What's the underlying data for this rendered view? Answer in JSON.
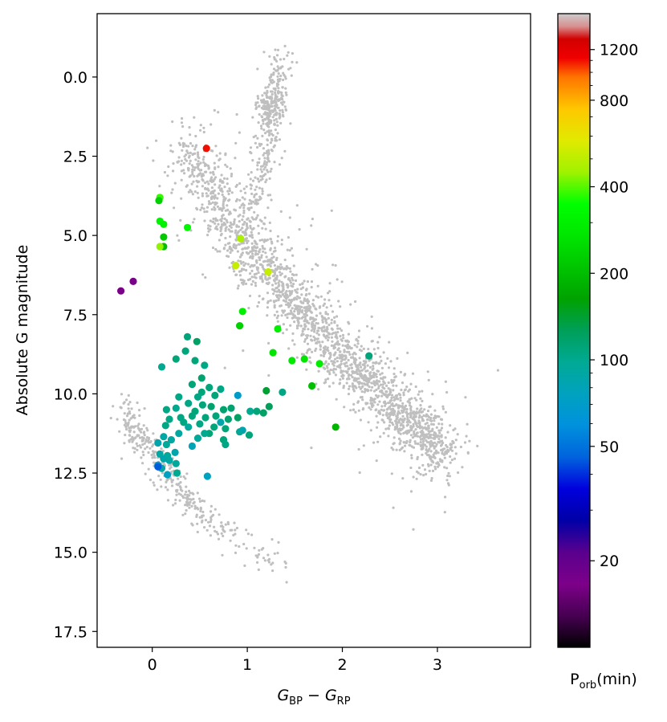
{
  "chart_data": {
    "type": "scatter",
    "xlabel": "G_BP − G_RP",
    "ylabel": "Absolute G magnitude",
    "xlim": [
      -0.58,
      3.98
    ],
    "ylim": [
      18.0,
      -2.0
    ],
    "y_inverted": true,
    "xticks": [
      0,
      1,
      2,
      3
    ],
    "yticks": [
      0.0,
      2.5,
      5.0,
      7.5,
      10.0,
      12.5,
      15.0,
      17.5
    ],
    "grid": false,
    "background_series": {
      "name": "",
      "color": "#bfbfbf",
      "description_points": "dense field-star population: main sequence, red giant branch and white dwarf cooling sequence",
      "main_sequence": [
        [
          0.3,
          2.3
        ],
        [
          0.5,
          2.8
        ],
        [
          0.7,
          3.8
        ],
        [
          0.9,
          4.9
        ],
        [
          1.1,
          5.7
        ],
        [
          1.3,
          6.4
        ],
        [
          1.5,
          7.1
        ],
        [
          1.7,
          7.8
        ],
        [
          1.9,
          8.5
        ],
        [
          2.1,
          9.1
        ],
        [
          2.3,
          9.7
        ],
        [
          2.5,
          10.3
        ],
        [
          2.7,
          10.9
        ],
        [
          2.9,
          11.4
        ],
        [
          3.1,
          11.9
        ]
      ],
      "giant_branch": [
        [
          1.0,
          4.5
        ],
        [
          1.1,
          3.6
        ],
        [
          1.15,
          2.8
        ],
        [
          1.2,
          2.0
        ],
        [
          1.25,
          1.2
        ],
        [
          1.3,
          0.4
        ],
        [
          1.35,
          -0.5
        ],
        [
          1.2,
          0.9
        ],
        [
          1.3,
          1.2
        ]
      ],
      "white_dwarfs": [
        [
          -0.3,
          10.5
        ],
        [
          -0.2,
          11.0
        ],
        [
          -0.1,
          11.5
        ],
        [
          0.0,
          12.0
        ],
        [
          0.1,
          12.3
        ],
        [
          0.2,
          12.7
        ],
        [
          0.3,
          13.0
        ],
        [
          0.4,
          13.4
        ],
        [
          0.5,
          13.7
        ],
        [
          0.6,
          14.0
        ],
        [
          0.8,
          14.5
        ],
        [
          1.0,
          14.9
        ],
        [
          1.2,
          15.2
        ],
        [
          1.4,
          15.5
        ]
      ]
    },
    "series": [
      {
        "name": "",
        "columns": [
          "bp_rp",
          "abs_g",
          "p_orb_min"
        ],
        "points": [
          [
            0.57,
            2.25,
            1100
          ],
          [
            0.08,
            3.8,
            380
          ],
          [
            0.07,
            3.9,
            230
          ],
          [
            0.08,
            4.55,
            320
          ],
          [
            0.12,
            4.65,
            300
          ],
          [
            0.12,
            5.05,
            220
          ],
          [
            0.12,
            5.35,
            200
          ],
          [
            0.08,
            5.35,
            440
          ],
          [
            0.37,
            4.75,
            330
          ],
          [
            0.93,
            5.1,
            470
          ],
          [
            0.88,
            5.95,
            520
          ],
          [
            1.22,
            6.15,
            520
          ],
          [
            -0.33,
            6.75,
            17
          ],
          [
            -0.2,
            6.45,
            17
          ],
          [
            0.95,
            7.4,
            300
          ],
          [
            0.92,
            7.85,
            230
          ],
          [
            1.32,
            7.95,
            300
          ],
          [
            1.27,
            8.7,
            270
          ],
          [
            1.47,
            8.95,
            280
          ],
          [
            1.6,
            8.9,
            270
          ],
          [
            1.76,
            9.05,
            290
          ],
          [
            1.68,
            9.75,
            200
          ],
          [
            1.93,
            11.05,
            190
          ],
          [
            2.28,
            8.8,
            110
          ],
          [
            0.37,
            8.2,
            110
          ],
          [
            0.47,
            8.35,
            120
          ],
          [
            0.35,
            8.65,
            110
          ],
          [
            0.25,
            8.9,
            110
          ],
          [
            0.45,
            8.95,
            110
          ],
          [
            0.1,
            9.15,
            100
          ],
          [
            0.55,
            9.1,
            105
          ],
          [
            0.52,
            9.5,
            115
          ],
          [
            0.42,
            9.7,
            110
          ],
          [
            0.6,
            9.8,
            110
          ],
          [
            0.52,
            9.95,
            110
          ],
          [
            0.72,
            9.85,
            105
          ],
          [
            0.48,
            10.1,
            105
          ],
          [
            0.66,
            10.05,
            110
          ],
          [
            0.28,
            10.1,
            105
          ],
          [
            0.38,
            10.3,
            105
          ],
          [
            0.53,
            10.35,
            110
          ],
          [
            0.25,
            10.45,
            100
          ],
          [
            0.15,
            10.5,
            105
          ],
          [
            0.62,
            10.4,
            115
          ],
          [
            0.75,
            10.5,
            115
          ],
          [
            0.83,
            10.45,
            115
          ],
          [
            0.45,
            10.55,
            110
          ],
          [
            0.42,
            10.7,
            110
          ],
          [
            0.56,
            10.75,
            110
          ],
          [
            0.3,
            10.75,
            105
          ],
          [
            0.67,
            10.7,
            110
          ],
          [
            0.8,
            10.8,
            115
          ],
          [
            0.9,
            10.75,
            120
          ],
          [
            0.18,
            10.8,
            105
          ],
          [
            0.33,
            10.9,
            105
          ],
          [
            0.5,
            10.95,
            105
          ],
          [
            0.65,
            11.05,
            110
          ],
          [
            0.14,
            11.0,
            105
          ],
          [
            0.77,
            11.1,
            110
          ],
          [
            0.38,
            11.05,
            95
          ],
          [
            0.6,
            11.25,
            110
          ],
          [
            0.55,
            11.25,
            100
          ],
          [
            0.28,
            11.25,
            90
          ],
          [
            0.92,
            11.2,
            100
          ],
          [
            0.12,
            11.35,
            90
          ],
          [
            0.48,
            11.4,
            95
          ],
          [
            0.75,
            11.45,
            110
          ],
          [
            0.2,
            11.45,
            90
          ],
          [
            0.06,
            11.55,
            85
          ],
          [
            0.15,
            11.6,
            95
          ],
          [
            0.77,
            11.6,
            105
          ],
          [
            0.42,
            11.65,
            80
          ],
          [
            0.08,
            11.9,
            90
          ],
          [
            0.16,
            11.95,
            95
          ],
          [
            0.24,
            11.85,
            85
          ],
          [
            0.12,
            12.05,
            85
          ],
          [
            0.18,
            12.1,
            90
          ],
          [
            0.25,
            12.2,
            95
          ],
          [
            0.06,
            12.25,
            70
          ],
          [
            0.1,
            12.35,
            90
          ],
          [
            0.26,
            12.5,
            100
          ],
          [
            0.16,
            12.55,
            75
          ],
          [
            0.06,
            12.3,
            45
          ],
          [
            0.58,
            12.6,
            75
          ],
          [
            0.9,
            10.05,
            70
          ],
          [
            1.03,
            10.55,
            100
          ],
          [
            1.1,
            10.55,
            110
          ],
          [
            1.17,
            10.6,
            120
          ],
          [
            1.02,
            11.3,
            110
          ],
          [
            1.2,
            9.9,
            140
          ],
          [
            1.37,
            9.95,
            105
          ],
          [
            1.23,
            10.4,
            125
          ],
          [
            0.95,
            11.15,
            85
          ],
          [
            0.72,
            10.9,
            85
          ]
        ]
      }
    ],
    "colorbar": {
      "label_main": "P",
      "label_sub": "orb",
      "label_unit": "(min)",
      "scale": "log",
      "range": [
        10,
        1600
      ],
      "ticks": [
        20,
        50,
        100,
        200,
        400,
        800,
        1200
      ],
      "tick_labels": [
        "20",
        "50",
        "100",
        "200",
        "400",
        "800",
        "1200"
      ],
      "minor_ticks": [
        30,
        40,
        60,
        70,
        80,
        90,
        300,
        500,
        600,
        700,
        900,
        1000,
        1100
      ],
      "colormap": "nipy_spectral"
    }
  }
}
